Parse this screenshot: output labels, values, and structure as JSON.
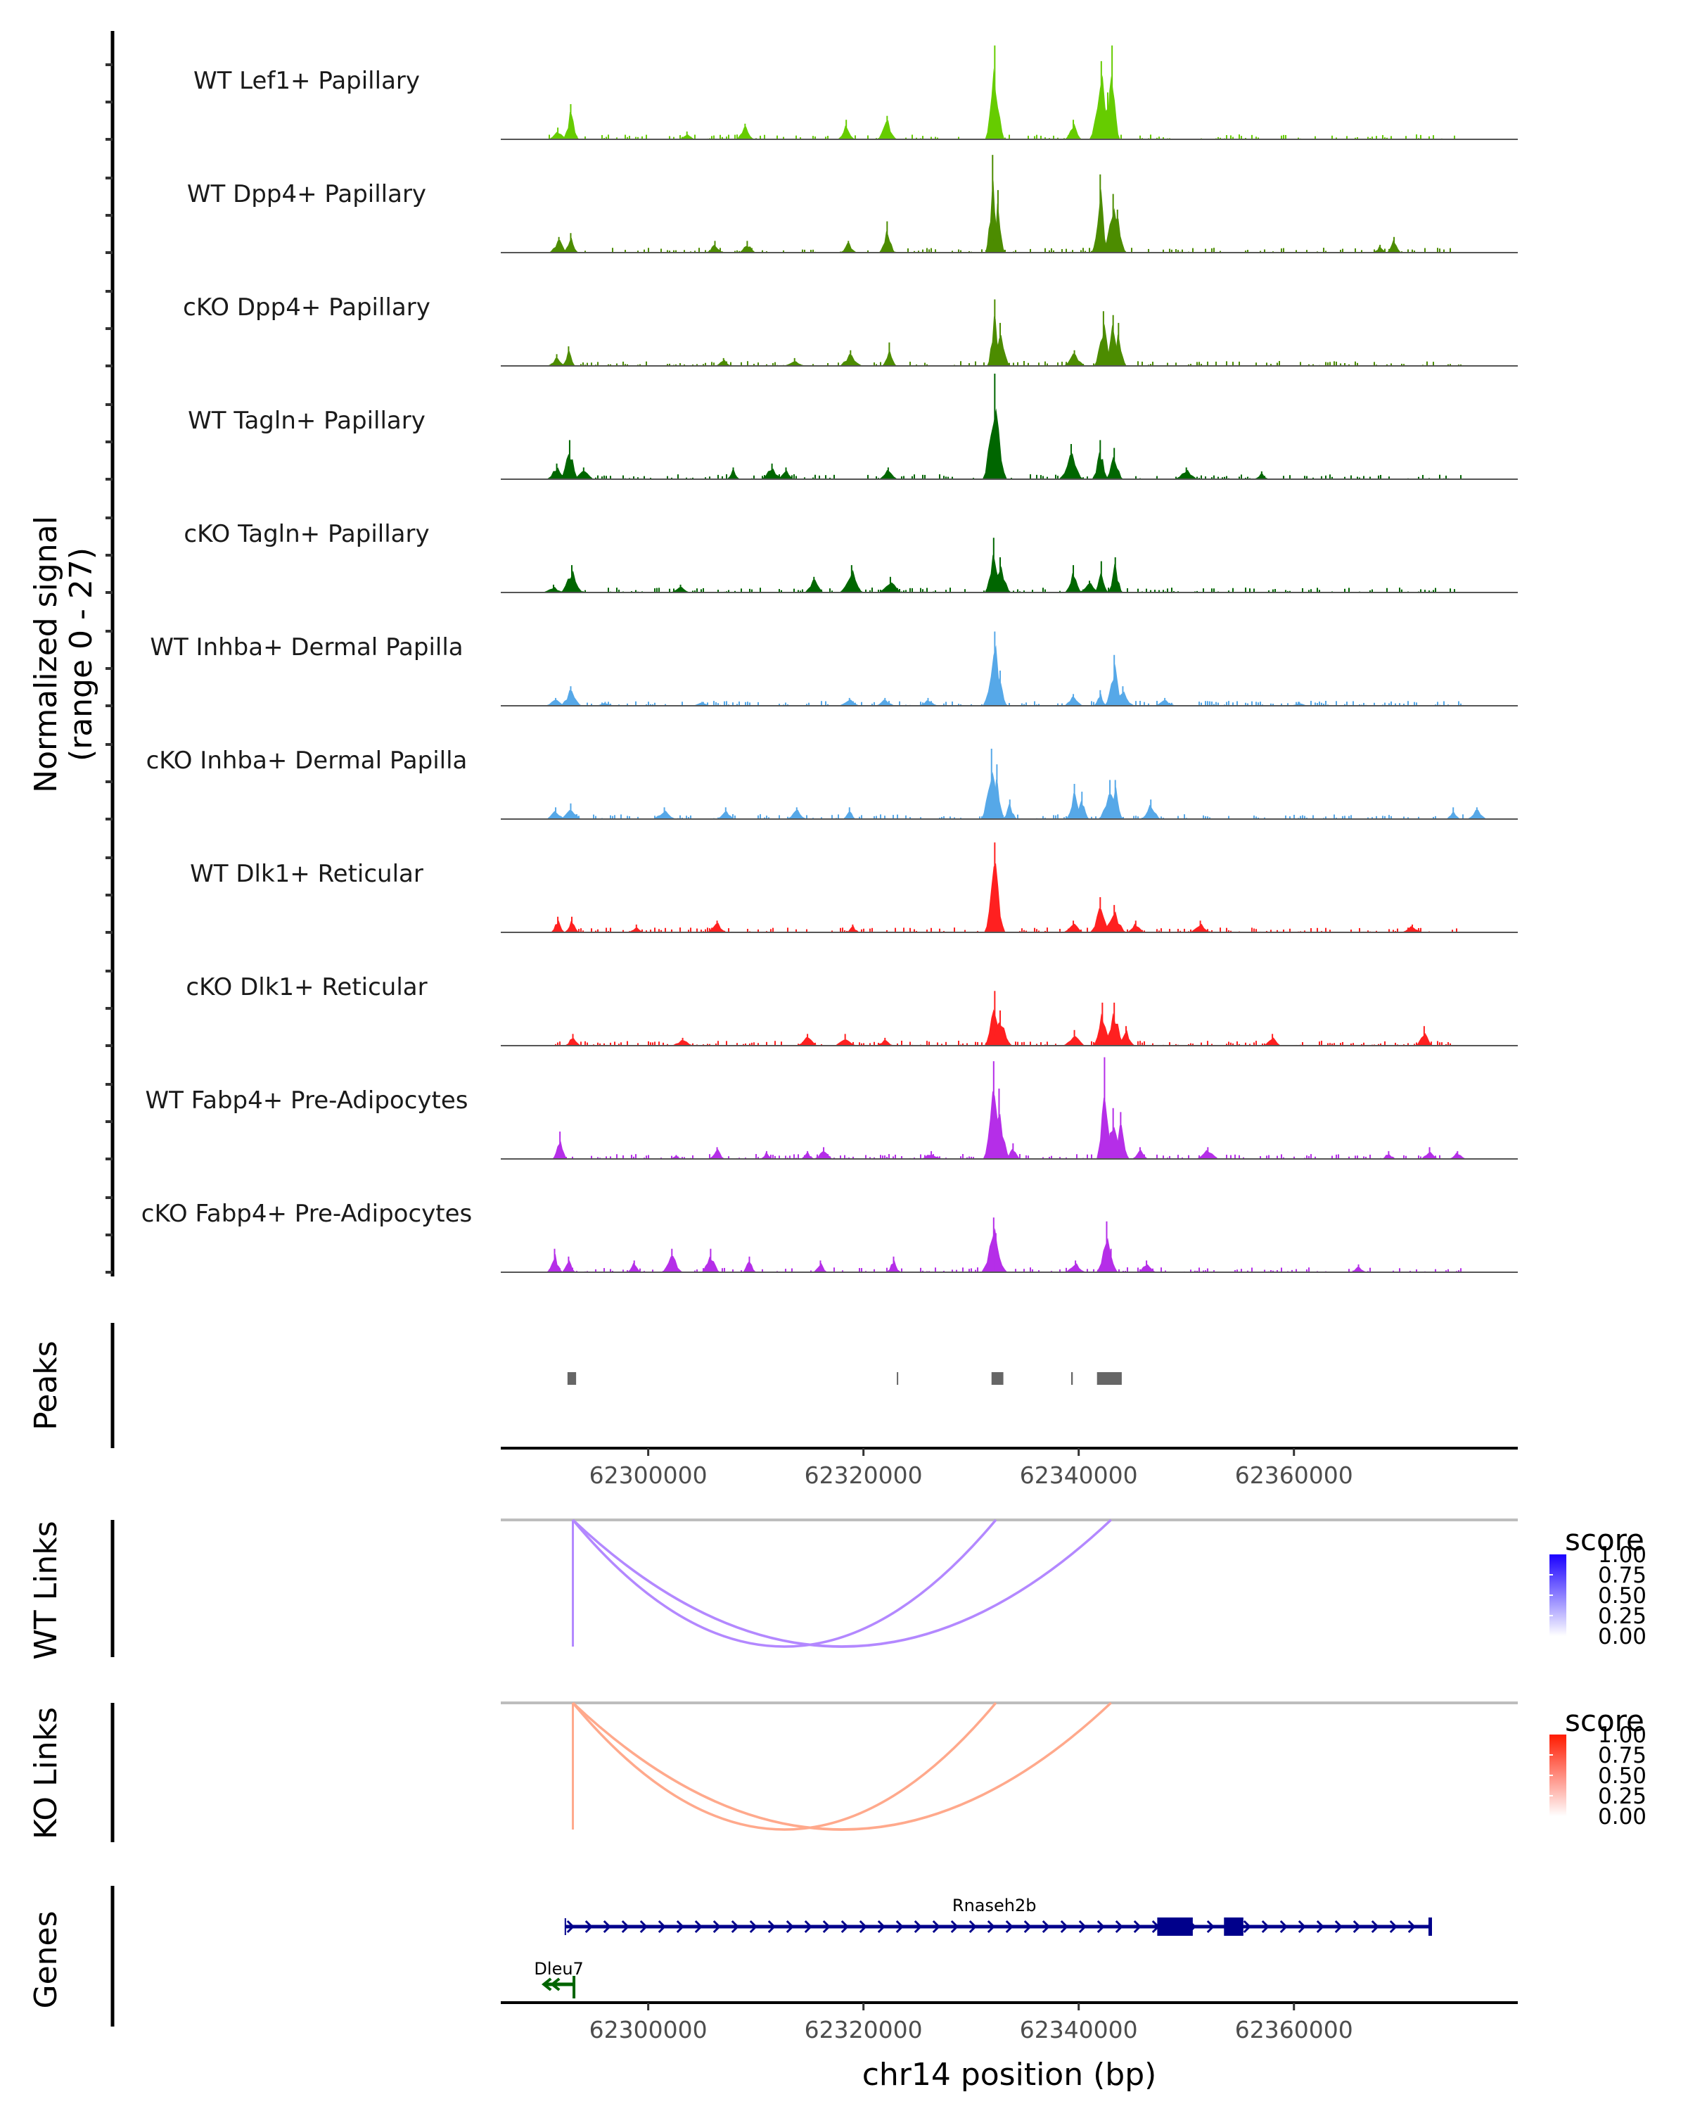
{
  "chart_data": {
    "type": "area",
    "title": "",
    "region": {
      "chrom": "chr14",
      "start": 62286300,
      "end": 62380800
    },
    "xlabel": "chr14 position (bp)",
    "x_ticks": [
      62300000,
      62320000,
      62340000,
      62360000
    ],
    "x_tick_labels": [
      "62300000",
      "62320000",
      "62340000",
      "62360000"
    ],
    "coverage": {
      "ylabel_line1": "Normalized signal",
      "ylabel_line2": "(range 0 - 27)",
      "ylim": [
        0,
        27
      ],
      "tracks": [
        {
          "name": "WT Lef1+ Papillary",
          "color": "#66cc00",
          "peaks": [
            [
              62292800,
              9
            ],
            [
              62291600,
              3
            ],
            [
              62303600,
              2
            ],
            [
              62309000,
              4
            ],
            [
              62318400,
              5
            ],
            [
              62322200,
              6
            ],
            [
              62332200,
              24
            ],
            [
              62339500,
              5
            ],
            [
              62342100,
              20
            ],
            [
              62343100,
              24
            ],
            [
              62342700,
              12
            ]
          ]
        },
        {
          "name": "WT Dpp4+ Papillary",
          "color": "#4c8c00",
          "peaks": [
            [
              62292800,
              5
            ],
            [
              62291700,
              4
            ],
            [
              62306200,
              3
            ],
            [
              62309200,
              3
            ],
            [
              62318600,
              3
            ],
            [
              62322200,
              8
            ],
            [
              62332000,
              25
            ],
            [
              62332500,
              16
            ],
            [
              62342000,
              20
            ],
            [
              62343200,
              15
            ],
            [
              62343600,
              11
            ],
            [
              62369300,
              4
            ],
            [
              62368000,
              2
            ]
          ]
        },
        {
          "name": "cKO Dpp4+ Papillary",
          "color": "#4c8c00",
          "peaks": [
            [
              62292600,
              5
            ],
            [
              62291500,
              3
            ],
            [
              62307000,
              2
            ],
            [
              62313600,
              2
            ],
            [
              62318800,
              4
            ],
            [
              62322400,
              6
            ],
            [
              62332200,
              17
            ],
            [
              62332700,
              11
            ],
            [
              62339600,
              4
            ],
            [
              62342300,
              14
            ],
            [
              62343200,
              13
            ],
            [
              62343700,
              11
            ]
          ]
        },
        {
          "name": "WT Tagln+ Papillary",
          "color": "#006600",
          "peaks": [
            [
              62291500,
              4
            ],
            [
              62292700,
              10
            ],
            [
              62294000,
              3
            ],
            [
              62307900,
              3
            ],
            [
              62311500,
              4
            ],
            [
              62312800,
              3
            ],
            [
              62322300,
              3
            ],
            [
              62332200,
              27
            ],
            [
              62339300,
              9
            ],
            [
              62342000,
              10
            ],
            [
              62343300,
              8
            ],
            [
              62350000,
              3
            ],
            [
              62357000,
              2
            ]
          ]
        },
        {
          "name": "cKO Tagln+ Papillary",
          "color": "#006600",
          "peaks": [
            [
              62292900,
              7
            ],
            [
              62291200,
              2
            ],
            [
              62303000,
              2
            ],
            [
              62315400,
              4
            ],
            [
              62318900,
              7
            ],
            [
              62322500,
              4
            ],
            [
              62332100,
              14
            ],
            [
              62332700,
              9
            ],
            [
              62339500,
              7
            ],
            [
              62342100,
              8
            ],
            [
              62343400,
              9
            ],
            [
              62341000,
              3
            ]
          ]
        },
        {
          "name": "WT Inhba+ Dermal Papilla",
          "color": "#56a8e8",
          "peaks": [
            [
              62292800,
              5
            ],
            [
              62291400,
              2
            ],
            [
              62296000,
              1
            ],
            [
              62305000,
              1
            ],
            [
              62318700,
              2
            ],
            [
              62322000,
              2
            ],
            [
              62326000,
              2
            ],
            [
              62332200,
              19
            ],
            [
              62332700,
              9
            ],
            [
              62339500,
              3
            ],
            [
              62342000,
              4
            ],
            [
              62343300,
              13
            ],
            [
              62344100,
              5
            ],
            [
              62348000,
              2
            ],
            [
              62360500,
              1
            ]
          ]
        },
        {
          "name": "cKO Inhba+ Dermal Papilla",
          "color": "#56a8e8",
          "peaks": [
            [
              62291400,
              3
            ],
            [
              62292800,
              4
            ],
            [
              62301500,
              3
            ],
            [
              62307200,
              3
            ],
            [
              62313800,
              3
            ],
            [
              62318700,
              3
            ],
            [
              62331900,
              18
            ],
            [
              62332400,
              14
            ],
            [
              62333600,
              5
            ],
            [
              62339600,
              9
            ],
            [
              62340300,
              7
            ],
            [
              62342900,
              10
            ],
            [
              62343400,
              10
            ],
            [
              62346700,
              5
            ],
            [
              62374800,
              3
            ],
            [
              62377000,
              3
            ]
          ]
        },
        {
          "name": "WT Dlk1+ Reticular",
          "color": "#ff2020",
          "peaks": [
            [
              62291600,
              4
            ],
            [
              62292900,
              4
            ],
            [
              62298900,
              2
            ],
            [
              62306400,
              3
            ],
            [
              62319000,
              2
            ],
            [
              62332200,
              23
            ],
            [
              62339500,
              3
            ],
            [
              62342000,
              9
            ],
            [
              62343300,
              7
            ],
            [
              62345300,
              3
            ],
            [
              62351300,
              3
            ],
            [
              62371000,
              2
            ]
          ]
        },
        {
          "name": "cKO Dlk1+ Reticular",
          "color": "#ff2020",
          "peaks": [
            [
              62293000,
              3
            ],
            [
              62303200,
              2
            ],
            [
              62314800,
              3
            ],
            [
              62318300,
              3
            ],
            [
              62322000,
              2
            ],
            [
              62332200,
              14
            ],
            [
              62332700,
              9
            ],
            [
              62339600,
              4
            ],
            [
              62342200,
              11
            ],
            [
              62343300,
              11
            ],
            [
              62344400,
              5
            ],
            [
              62358000,
              3
            ],
            [
              62372100,
              5
            ]
          ]
        },
        {
          "name": "WT Fabp4+ Pre-Adipocytes",
          "color": "#b52ee8",
          "peaks": [
            [
              62291800,
              7
            ],
            [
              62302600,
              1
            ],
            [
              62306400,
              3
            ],
            [
              62311000,
              2
            ],
            [
              62314800,
              2
            ],
            [
              62316300,
              3
            ],
            [
              62326300,
              2
            ],
            [
              62332100,
              25
            ],
            [
              62332600,
              18
            ],
            [
              62333900,
              4
            ],
            [
              62342400,
              26
            ],
            [
              62343200,
              13
            ],
            [
              62343900,
              12
            ],
            [
              62345700,
              3
            ],
            [
              62352000,
              3
            ],
            [
              62368800,
              2
            ],
            [
              62372600,
              3
            ],
            [
              62375200,
              2
            ]
          ]
        },
        {
          "name": "cKO Fabp4+ Pre-Adipocytes",
          "color": "#b52ee8",
          "peaks": [
            [
              62291300,
              6
            ],
            [
              62292600,
              4
            ],
            [
              62298700,
              3
            ],
            [
              62302200,
              6
            ],
            [
              62305800,
              6
            ],
            [
              62309400,
              4
            ],
            [
              62316000,
              3
            ],
            [
              62322800,
              4
            ],
            [
              62332100,
              14
            ],
            [
              62332300,
              10
            ],
            [
              62339700,
              3
            ],
            [
              62342600,
              13
            ],
            [
              62343000,
              6
            ],
            [
              62346300,
              3
            ],
            [
              62366000,
              2
            ]
          ]
        }
      ]
    },
    "peaks_track": {
      "label": "Peaks",
      "color": "#666666",
      "regions": [
        [
          62292500,
          62293300
        ],
        [
          62323100,
          62323200
        ],
        [
          62331900,
          62333000
        ],
        [
          62339300,
          62339450
        ],
        [
          62341700,
          62344000
        ]
      ]
    },
    "links": [
      {
        "label": "WT Links",
        "color": "#b388ff",
        "legend": {
          "title": "score",
          "ticks": [
            "1.00",
            "0.75",
            "0.50",
            "0.25",
            "0.00"
          ],
          "low": "#ffffff",
          "high": "#1a00ff"
        },
        "arcs": [
          {
            "start": 62293000,
            "end": 62293001,
            "score": 0.4
          },
          {
            "start": 62293000,
            "end": 62332300,
            "score": 0.38
          },
          {
            "start": 62293000,
            "end": 62343000,
            "score": 0.42
          }
        ]
      },
      {
        "label": "KO Links",
        "color": "#ffa98c",
        "legend": {
          "title": "score",
          "ticks": [
            "1.00",
            "0.75",
            "0.50",
            "0.25",
            "0.00"
          ],
          "low": "#ffffff",
          "high": "#ff1a00"
        },
        "arcs": [
          {
            "start": 62293000,
            "end": 62293001,
            "score": 0.4
          },
          {
            "start": 62293000,
            "end": 62332300,
            "score": 0.38
          },
          {
            "start": 62293000,
            "end": 62343000,
            "score": 0.42
          }
        ]
      }
    ],
    "genes": {
      "label": "Genes",
      "items": [
        {
          "name": "Rnaseh2b",
          "strand": "+",
          "color": "#00008b",
          "start": 62292300,
          "end": 62372800,
          "exons": [
            [
              62347300,
              62350600
            ],
            [
              62353500,
              62355300
            ],
            [
              62372500,
              62372800
            ]
          ]
        },
        {
          "name": "Dleu7",
          "strand": "-",
          "color": "#006400",
          "start": 62290300,
          "end": 62293100,
          "exons": []
        }
      ]
    }
  }
}
